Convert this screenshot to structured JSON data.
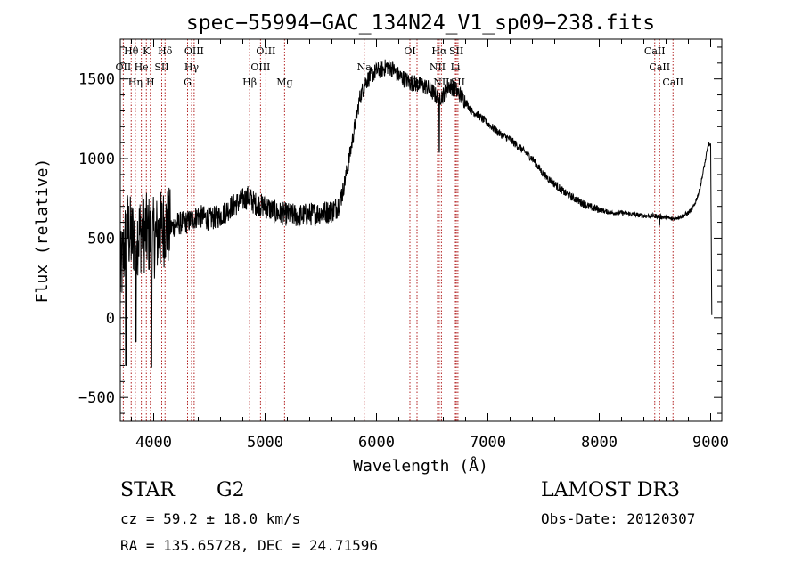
{
  "chart_data": {
    "type": "line",
    "title": "spec−55994−GAC_134N24_V1_sp09−238.fits",
    "xlabel": "Wavelength (Å)",
    "ylabel": "Flux (relative)",
    "xlim": [
      3700,
      9100
    ],
    "ylim": [
      -650,
      1750
    ],
    "xticks": [
      4000,
      5000,
      6000,
      7000,
      8000,
      9000
    ],
    "xtick_labels": [
      "4000",
      "5000",
      "6000",
      "7000",
      "8000",
      "9000"
    ],
    "yticks": [
      -500,
      0,
      500,
      1000,
      1500
    ],
    "ytick_labels": [
      "−500",
      "0",
      "500",
      "1000",
      "1500"
    ],
    "grid": false,
    "series": [
      {
        "name": "spectrum",
        "x": [
          3700,
          3760,
          3800,
          3850,
          3900,
          3950,
          4000,
          4050,
          4100,
          4150,
          4200,
          4300,
          4400,
          4500,
          4600,
          4700,
          4800,
          4850,
          4900,
          5000,
          5100,
          5200,
          5300,
          5400,
          5500,
          5600,
          5650,
          5700,
          5750,
          5800,
          5850,
          5900,
          5950,
          6000,
          6050,
          6100,
          6150,
          6200,
          6300,
          6400,
          6450,
          6500,
          6550,
          6600,
          6650,
          6700,
          6750,
          6800,
          6850,
          6900,
          7000,
          7100,
          7200,
          7300,
          7400,
          7500,
          7600,
          7700,
          7800,
          7900,
          8000,
          8100,
          8200,
          8300,
          8400,
          8500,
          8600,
          8650,
          8700,
          8750,
          8800,
          8850,
          8900,
          8950,
          8980,
          9000,
          9010
        ],
        "values": [
          250,
          560,
          500,
          520,
          540,
          520,
          500,
          530,
          580,
          560,
          590,
          600,
          640,
          620,
          640,
          700,
          740,
          760,
          720,
          700,
          660,
          650,
          640,
          650,
          660,
          670,
          700,
          800,
          980,
          1180,
          1380,
          1480,
          1520,
          1550,
          1560,
          1580,
          1560,
          1520,
          1480,
          1460,
          1450,
          1420,
          1380,
          1400,
          1460,
          1440,
          1400,
          1360,
          1300,
          1280,
          1220,
          1160,
          1120,
          1060,
          1000,
          900,
          840,
          780,
          740,
          700,
          680,
          660,
          660,
          650,
          640,
          640,
          630,
          620,
          630,
          640,
          660,
          700,
          800,
          980,
          1090,
          1080,
          30
        ]
      }
    ],
    "absorption_dips": [
      {
        "x": 6563,
        "y": 1040
      },
      {
        "x": 8542,
        "y": 580
      },
      {
        "x": 3750,
        "y": -300
      },
      {
        "x": 3840,
        "y": -150
      },
      {
        "x": 3980,
        "y": -310
      }
    ],
    "line_markers": [
      {
        "x": 3798,
        "label": "Hθ",
        "row": 0
      },
      {
        "x": 3934,
        "label": "K",
        "row": 0
      },
      {
        "x": 4102,
        "label": "Hδ",
        "row": 0
      },
      {
        "x": 4363,
        "label": "OIII",
        "row": 0
      },
      {
        "x": 5007,
        "label": "OIII",
        "row": 0
      },
      {
        "x": 6300,
        "label": "OI",
        "row": 0
      },
      {
        "x": 6563,
        "label": "Hα",
        "row": 0
      },
      {
        "x": 6717,
        "label": "SII",
        "row": 0
      },
      {
        "x": 8498,
        "label": "CaII",
        "row": 0
      },
      {
        "x": 3727,
        "label": "OII",
        "row": 1
      },
      {
        "x": 3889,
        "label": "He",
        "row": 1
      },
      {
        "x": 4072,
        "label": "SII",
        "row": 1
      },
      {
        "x": 4340,
        "label": "Hγ",
        "row": 1
      },
      {
        "x": 4959,
        "label": "OIII",
        "row": 1
      },
      {
        "x": 5890,
        "label": "Na",
        "row": 1
      },
      {
        "x": 6548,
        "label": "NII",
        "row": 1
      },
      {
        "x": 6708,
        "label": "Li",
        "row": 1
      },
      {
        "x": 8542,
        "label": "CaII",
        "row": 1
      },
      {
        "x": 3835,
        "label": "Hη",
        "row": 2
      },
      {
        "x": 3970,
        "label": "H",
        "row": 2
      },
      {
        "x": 4304,
        "label": "G",
        "row": 2
      },
      {
        "x": 4861,
        "label": "Hβ",
        "row": 2
      },
      {
        "x": 5175,
        "label": "Mg",
        "row": 2
      },
      {
        "x": 6364,
        "label": "OI",
        "row": 2
      },
      {
        "x": 6583,
        "label": "NII",
        "row": 2
      },
      {
        "x": 6731,
        "label": "SII",
        "row": 2
      },
      {
        "x": 8662,
        "label": "CaII",
        "row": 2
      }
    ],
    "colors": {
      "spectrum": "#000000",
      "marker_line": "#b22222",
      "axes": "#000000"
    }
  },
  "info": {
    "class": "STAR",
    "subclass": "G2",
    "cz": "cz = 59.2 ± 18.0 km/s",
    "radec": "RA = 135.65728, DEC =  24.71596",
    "survey": "LAMOST DR3",
    "obsdate": "Obs-Date: 20120307"
  }
}
